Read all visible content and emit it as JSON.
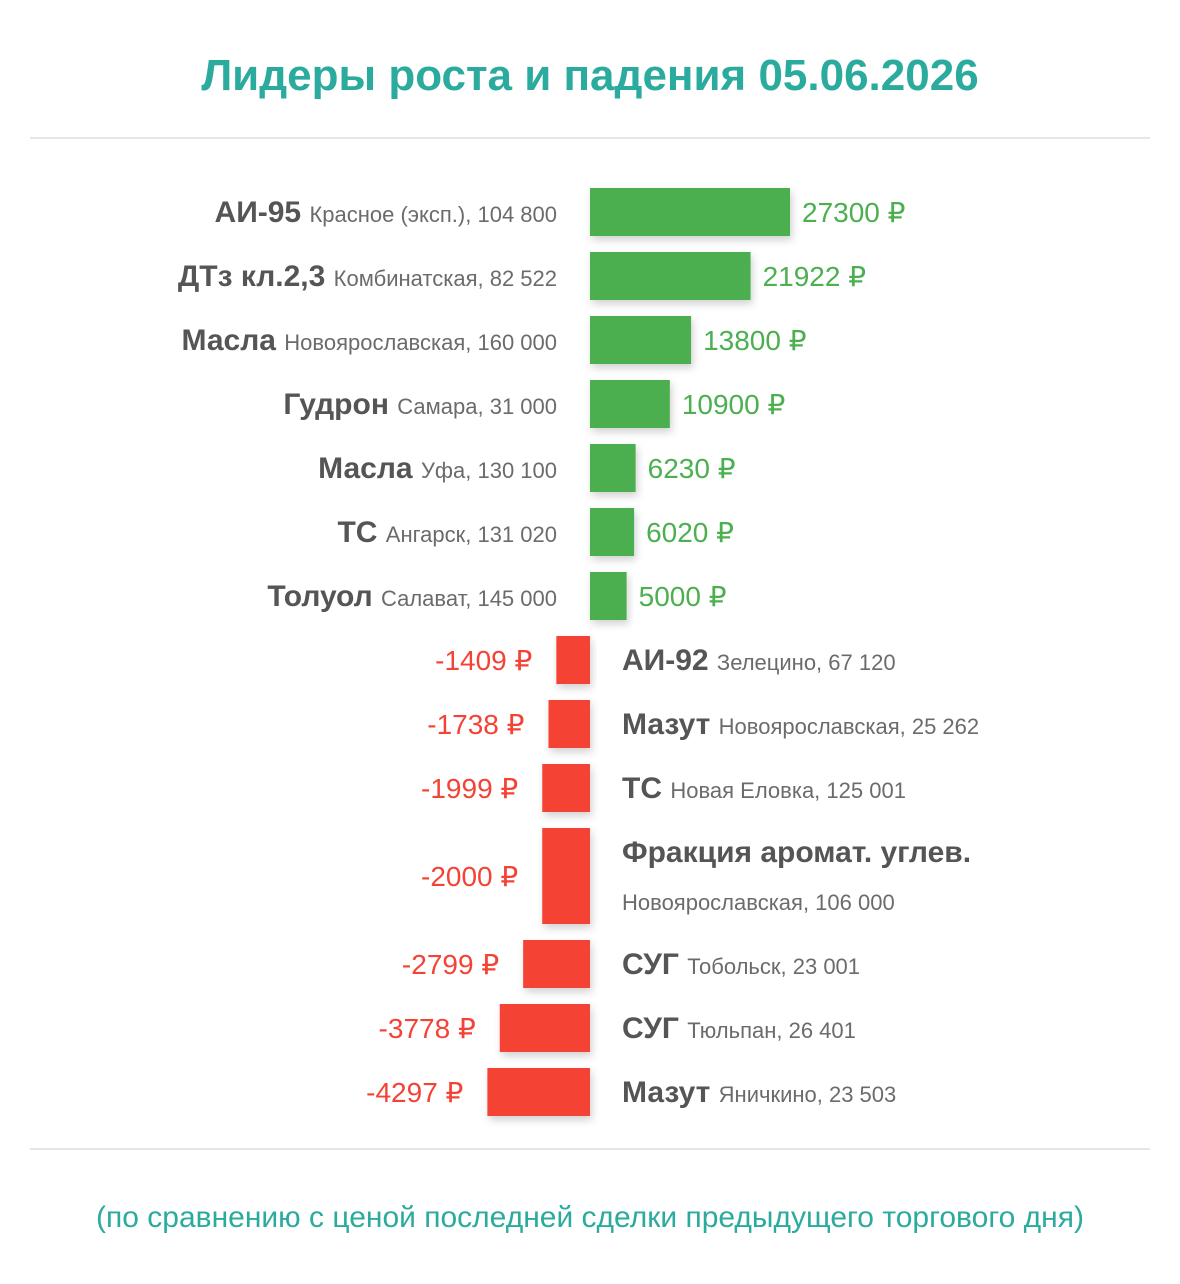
{
  "header": {
    "title": "Лидеры роста и падения 05.06.2026"
  },
  "footnote": "(по сравнению с ценой последней сделки предыдущего торгового дня)",
  "colors": {
    "accent": "#2bab9d",
    "gain": "#4caf50",
    "loss": "#f44336",
    "label_dark": "#555555",
    "label_light": "#6b6b6b"
  },
  "chart_data": {
    "type": "bar",
    "orientation": "horizontal",
    "title": "Лидеры роста и падения 05.06.2026",
    "unit": "₽",
    "categories": [
      "АИ-95 Красное (эксп.), 104 800",
      "ДТз кл.2,3 Комбинатская, 82 522",
      "Масла Новоярославская, 160 000",
      "Гудрон Самара, 31 000",
      "Масла Уфа, 130 100",
      "ТС Ангарск, 131 020",
      "Толуол Салават, 145 000",
      "АИ-92 Зелецино, 67 120",
      "Мазут Новоярославская, 25 262",
      "ТС Новая Еловка, 125 001",
      "Фракция аромат. углев. Новоярославская, 106 000",
      "СУГ Тобольск, 23 001",
      "СУГ Тюльпан, 26 401",
      "Мазут Яничкино, 23 503"
    ],
    "values": [
      27300,
      21922,
      13800,
      10900,
      6230,
      6020,
      5000,
      -1409,
      -1738,
      -1999,
      -2000,
      -2799,
      -3778,
      -4297
    ],
    "value_labels": [
      "27300 ₽",
      "21922 ₽",
      "13800 ₽",
      "10900 ₽",
      "6230 ₽",
      "6020 ₽",
      "5000 ₽",
      "-1409 ₽",
      "-1738 ₽",
      "-1999 ₽",
      "-2000 ₽",
      "-2799 ₽",
      "-3778 ₽",
      "-4297 ₽"
    ],
    "rows": [
      {
        "product": "АИ-95",
        "place": "Красное (эксп.)",
        "volume": "104 800",
        "value": 27300,
        "value_label": "27300 ₽"
      },
      {
        "product": "ДТз кл.2,3",
        "place": "Комбинатская",
        "volume": "82 522",
        "value": 21922,
        "value_label": "21922 ₽"
      },
      {
        "product": "Масла",
        "place": "Новоярославская",
        "volume": "160 000",
        "value": 13800,
        "value_label": "13800 ₽"
      },
      {
        "product": "Гудрон",
        "place": "Самара",
        "volume": "31 000",
        "value": 10900,
        "value_label": "10900 ₽"
      },
      {
        "product": "Масла",
        "place": "Уфа",
        "volume": "130 100",
        "value": 6230,
        "value_label": "6230 ₽"
      },
      {
        "product": "ТС",
        "place": "Ангарск",
        "volume": "131 020",
        "value": 6020,
        "value_label": "6020 ₽"
      },
      {
        "product": "Толуол",
        "place": "Салават",
        "volume": "145 000",
        "value": 5000,
        "value_label": "5000 ₽"
      },
      {
        "product": "АИ-92",
        "place": "Зелецино",
        "volume": "67 120",
        "value": -1409,
        "value_label": "-1409 ₽"
      },
      {
        "product": "Мазут",
        "place": "Новоярославская",
        "volume": "25 262",
        "value": -1738,
        "value_label": "-1738 ₽"
      },
      {
        "product": "ТС",
        "place": "Новая Еловка",
        "volume": "125 001",
        "value": -1999,
        "value_label": "-1999 ₽"
      },
      {
        "product": "Фракция аромат. углев.",
        "place": "Новоярославская",
        "volume": "106 000",
        "value": -2000,
        "value_label": "-2000 ₽"
      },
      {
        "product": "СУГ",
        "place": "Тобольск",
        "volume": "23 001",
        "value": -2799,
        "value_label": "-2799 ₽"
      },
      {
        "product": "СУГ",
        "place": "Тюльпан",
        "volume": "26 401",
        "value": -3778,
        "value_label": "-3778 ₽"
      },
      {
        "product": "Мазут",
        "place": "Яничкино",
        "volume": "23 503",
        "value": -4297,
        "value_label": "-4297 ₽"
      }
    ],
    "grid": false,
    "legend": "none"
  }
}
